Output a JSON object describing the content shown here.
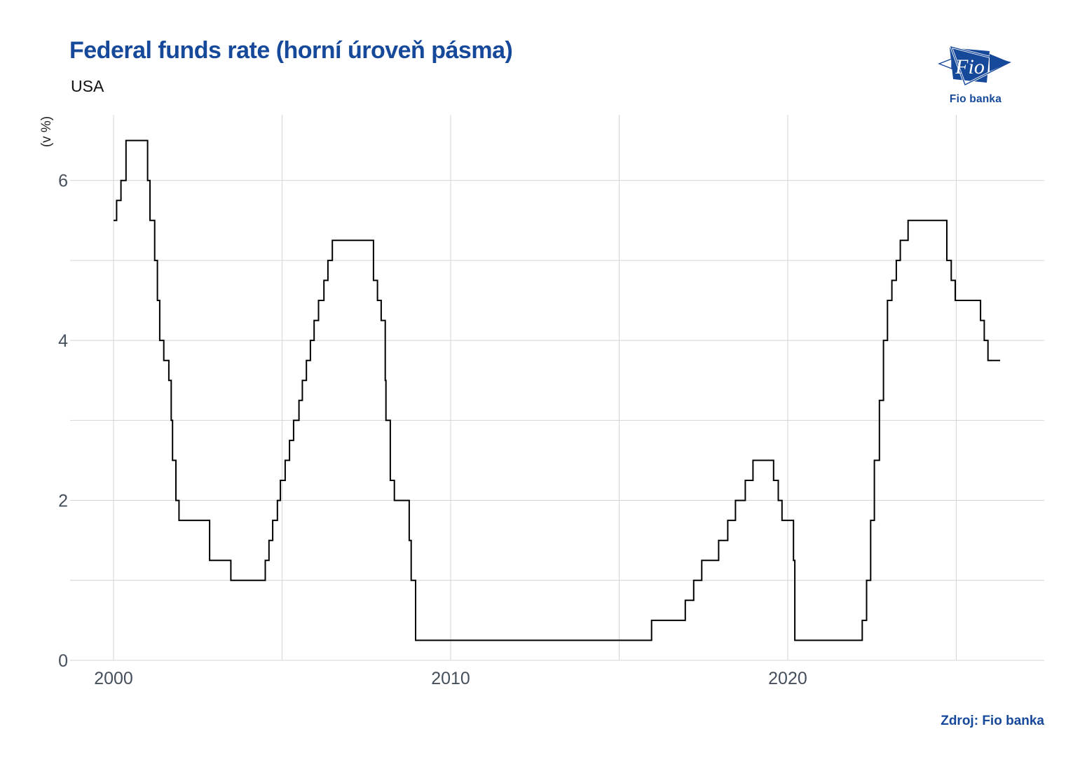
{
  "header": {
    "title": "Federal funds rate (horní úroveň pásma)",
    "subtitle": "USA"
  },
  "logo": {
    "text": "Fio",
    "caption": "Fio banka"
  },
  "source": {
    "label": "Zdroj: Fio banka"
  },
  "style": {
    "accent_blue": "#17499B",
    "grid_color": "#d4d4d4",
    "tick_color": "#46505c",
    "axis_unit_color": "#222222",
    "line_color": "#000000",
    "background": "#ffffff"
  },
  "chart_data": {
    "type": "line",
    "title": "Federal funds rate (horní úroveň pásma)",
    "subtitle": "USA",
    "xlabel": "",
    "ylabel": "(v %)",
    "grid": true,
    "legend": "none",
    "xlim": [
      1998.71,
      2027.61
    ],
    "ylim": [
      0,
      6.82
    ],
    "x_ticks": [
      {
        "value": 2000,
        "label": "2000"
      },
      {
        "value": 2010,
        "label": "2010"
      },
      {
        "value": 2020,
        "label": "2020"
      }
    ],
    "x_gridlines": [
      2000,
      2005,
      2010,
      2015,
      2020,
      2025
    ],
    "y_ticks": [
      {
        "value": 0,
        "label": "0"
      },
      {
        "value": 2,
        "label": "2"
      },
      {
        "value": 4,
        "label": "4"
      },
      {
        "value": 6,
        "label": "6"
      }
    ],
    "y_gridlines": [
      0,
      1,
      2,
      3,
      4,
      5,
      6
    ],
    "series": [
      {
        "name": "Federal funds rate (horní úroveň pásma) – USA",
        "interpolation": "step-after",
        "color": "#000000",
        "stroke_width": 2,
        "points": [
          [
            2000.0,
            5.5
          ],
          [
            2000.09,
            5.75
          ],
          [
            2000.22,
            6.0
          ],
          [
            2000.37,
            6.5
          ],
          [
            2001.01,
            6.0
          ],
          [
            2001.08,
            5.5
          ],
          [
            2001.22,
            5.0
          ],
          [
            2001.3,
            4.5
          ],
          [
            2001.37,
            4.0
          ],
          [
            2001.49,
            3.75
          ],
          [
            2001.64,
            3.5
          ],
          [
            2001.71,
            3.0
          ],
          [
            2001.75,
            2.5
          ],
          [
            2001.85,
            2.0
          ],
          [
            2001.94,
            1.75
          ],
          [
            2002.85,
            1.25
          ],
          [
            2003.48,
            1.0
          ],
          [
            2004.5,
            1.25
          ],
          [
            2004.61,
            1.5
          ],
          [
            2004.72,
            1.75
          ],
          [
            2004.86,
            2.0
          ],
          [
            2004.95,
            2.25
          ],
          [
            2005.09,
            2.5
          ],
          [
            2005.22,
            2.75
          ],
          [
            2005.34,
            3.0
          ],
          [
            2005.5,
            3.25
          ],
          [
            2005.6,
            3.5
          ],
          [
            2005.72,
            3.75
          ],
          [
            2005.84,
            4.0
          ],
          [
            2005.95,
            4.25
          ],
          [
            2006.08,
            4.5
          ],
          [
            2006.24,
            4.75
          ],
          [
            2006.36,
            5.0
          ],
          [
            2006.49,
            5.25
          ],
          [
            2007.71,
            4.75
          ],
          [
            2007.83,
            4.5
          ],
          [
            2007.94,
            4.25
          ],
          [
            2008.06,
            3.5
          ],
          [
            2008.08,
            3.0
          ],
          [
            2008.21,
            2.25
          ],
          [
            2008.33,
            2.0
          ],
          [
            2008.77,
            1.5
          ],
          [
            2008.83,
            1.0
          ],
          [
            2008.96,
            0.25
          ],
          [
            2015.96,
            0.5
          ],
          [
            2016.96,
            0.75
          ],
          [
            2017.21,
            1.0
          ],
          [
            2017.45,
            1.25
          ],
          [
            2017.95,
            1.5
          ],
          [
            2018.22,
            1.75
          ],
          [
            2018.45,
            2.0
          ],
          [
            2018.74,
            2.25
          ],
          [
            2018.97,
            2.5
          ],
          [
            2019.58,
            2.25
          ],
          [
            2019.72,
            2.0
          ],
          [
            2019.83,
            1.75
          ],
          [
            2020.17,
            1.25
          ],
          [
            2020.21,
            0.25
          ],
          [
            2022.21,
            0.5
          ],
          [
            2022.34,
            1.0
          ],
          [
            2022.46,
            1.75
          ],
          [
            2022.57,
            2.5
          ],
          [
            2022.72,
            3.25
          ],
          [
            2022.84,
            4.0
          ],
          [
            2022.96,
            4.5
          ],
          [
            2023.09,
            4.75
          ],
          [
            2023.22,
            5.0
          ],
          [
            2023.34,
            5.25
          ],
          [
            2023.57,
            5.5
          ],
          [
            2024.72,
            5.0
          ],
          [
            2024.85,
            4.75
          ],
          [
            2024.97,
            4.5
          ],
          [
            2025.72,
            4.25
          ],
          [
            2025.83,
            4.0
          ],
          [
            2025.94,
            3.75
          ],
          [
            2026.3,
            3.75
          ]
        ]
      }
    ]
  }
}
